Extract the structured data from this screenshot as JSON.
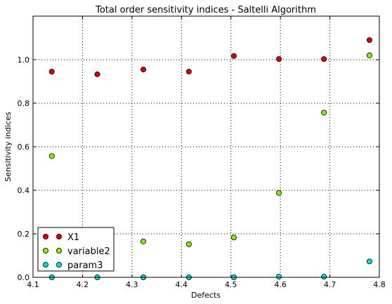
{
  "chart_data": {
    "type": "scatter",
    "title": "Total order sensitivity indices - Saltelli Algorithm",
    "xlabel": "Defects",
    "ylabel": "Sensitivity indices",
    "xlim": [
      4.1,
      4.8
    ],
    "ylim": [
      0.0,
      1.2
    ],
    "x_ticks": [
      "4.1",
      "4.2",
      "4.3",
      "4.4",
      "4.5",
      "4.6",
      "4.7",
      "4.8"
    ],
    "y_ticks": [
      "0.0",
      "0.2",
      "0.4",
      "0.6",
      "0.8",
      "1.0"
    ],
    "grid": true,
    "legend_position": "bottom-left",
    "x": [
      4.138,
      4.23,
      4.323,
      4.415,
      4.506,
      4.597,
      4.688,
      4.78
    ],
    "series": [
      {
        "name": "X1",
        "color": "#dd0000",
        "values": [
          0.945,
          0.933,
          0.955,
          0.945,
          1.017,
          1.003,
          1.003,
          1.09
        ]
      },
      {
        "name": "variable2",
        "color": "#88ee00",
        "values": [
          0.557,
          null,
          0.165,
          0.152,
          0.183,
          0.388,
          0.757,
          1.02
        ]
      },
      {
        "name": "param3",
        "color": "#00dddd",
        "values": [
          0.0,
          0.0,
          0.0,
          0.0,
          0.0,
          0.003,
          0.003,
          0.073
        ]
      }
    ]
  }
}
